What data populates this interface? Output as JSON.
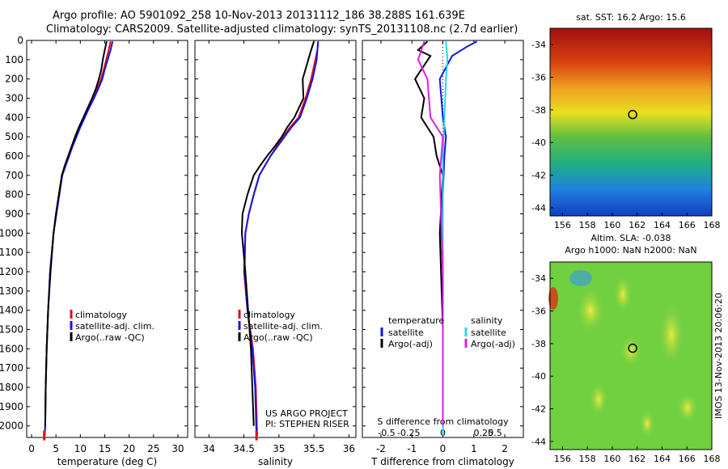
{
  "header": {
    "line1": "Argo profile: AO 5901092_258 10-Nov-2013 20131112_186 38.288S 161.639E",
    "line2": "Climatology: CARS2009. Satellite-adjusted climatology: synTS_20131108.nc (2.7d earlier)"
  },
  "colors": {
    "climatology": "#e01010",
    "satellite": "#1414e6",
    "argo": "#000000",
    "sat_salinity": "#22d8e8",
    "argo_salinity": "#e01ee0"
  },
  "chart_data": [
    {
      "type": "line",
      "xlabel": "temperature (deg C)",
      "ylabel": "",
      "xlim": [
        -1,
        32
      ],
      "ylim": [
        2060,
        0
      ],
      "x_ticks": [
        0,
        5,
        10,
        15,
        20,
        25,
        30
      ],
      "y_ticks": [
        0,
        100,
        200,
        300,
        400,
        500,
        600,
        700,
        800,
        900,
        1000,
        1100,
        1200,
        1300,
        1400,
        1500,
        1600,
        1700,
        1800,
        1900,
        2000
      ],
      "legend": [
        "climatology",
        "satellite-adj. clim.",
        "Argo(..raw -QC)"
      ],
      "series": [
        {
          "name": "climatology",
          "x": [
            16.2,
            15.8,
            15.3,
            14.8,
            14.2,
            13.5,
            12.6,
            11.7,
            10.8,
            9.9,
            9.1,
            8.3,
            7.6,
            6.9,
            6.3,
            5.6,
            5.0,
            4.5,
            3.8,
            3.4,
            3.1,
            2.9,
            2.8,
            2.7
          ],
          "y": [
            5,
            50,
            100,
            150,
            200,
            250,
            300,
            350,
            400,
            450,
            500,
            550,
            600,
            650,
            700,
            800,
            900,
            1000,
            1200,
            1400,
            1600,
            1800,
            2000,
            2050
          ]
        },
        {
          "name": "satellite-adj. clim.",
          "x": [
            16.6,
            16.2,
            15.6,
            15.0,
            14.5,
            13.7,
            12.8,
            11.8,
            10.9,
            10.0,
            9.2,
            8.4,
            7.7,
            7.0,
            6.3,
            5.7,
            5.1,
            4.5,
            3.8,
            3.4,
            3.1,
            2.9,
            2.8,
            2.7
          ],
          "y": [
            5,
            50,
            100,
            150,
            200,
            250,
            300,
            350,
            400,
            450,
            500,
            550,
            600,
            650,
            700,
            800,
            900,
            1000,
            1200,
            1400,
            1600,
            1800,
            2000,
            2050
          ]
        },
        {
          "name": "Argo(..raw -QC)",
          "x": [
            15.4,
            15.0,
            14.6,
            14.3,
            13.8,
            13.2,
            12.4,
            11.5,
            10.6,
            9.7,
            8.9,
            8.2,
            7.5,
            6.8,
            6.2,
            5.6,
            5.0,
            4.5,
            3.9,
            3.4,
            3.1,
            2.9,
            2.8
          ],
          "y": [
            5,
            50,
            100,
            150,
            200,
            250,
            300,
            350,
            400,
            450,
            500,
            550,
            600,
            650,
            700,
            800,
            900,
            1000,
            1200,
            1400,
            1600,
            1800,
            2000
          ]
        }
      ],
      "endpoint": {
        "x": 2.6,
        "y": 2050
      }
    },
    {
      "type": "line",
      "xlabel": "salinity",
      "ylabel": "",
      "xlim": [
        33.8,
        36.1
      ],
      "ylim": [
        2060,
        0
      ],
      "x_ticks": [
        34,
        34.5,
        35,
        35.5,
        36
      ],
      "legend": [
        "climatology",
        "satellite-adj. clim.",
        "Argo(..raw -QC)"
      ],
      "annotation": [
        "US ARGO PROJECT",
        "PI: STEPHEN RISER"
      ],
      "series": [
        {
          "name": "climatology",
          "x": [
            35.56,
            35.55,
            35.52,
            35.46,
            35.38,
            35.28,
            35.16,
            35.06,
            34.97,
            34.88,
            34.8,
            34.72,
            34.64,
            34.57,
            34.52,
            34.5,
            34.55,
            34.63,
            34.67,
            34.69
          ],
          "y": [
            5,
            50,
            100,
            200,
            300,
            400,
            450,
            500,
            550,
            600,
            650,
            700,
            800,
            900,
            1000,
            1200,
            1400,
            1600,
            1800,
            2050
          ]
        },
        {
          "name": "satellite-adj. clim.",
          "x": [
            35.56,
            35.55,
            35.54,
            35.48,
            35.4,
            35.3,
            35.18,
            35.08,
            34.98,
            34.88,
            34.8,
            34.72,
            34.64,
            34.57,
            34.52,
            34.51,
            34.55,
            34.62,
            34.66,
            34.68
          ],
          "y": [
            5,
            50,
            100,
            200,
            300,
            400,
            450,
            500,
            550,
            600,
            650,
            700,
            800,
            900,
            1000,
            1200,
            1400,
            1600,
            1800,
            2050
          ]
        },
        {
          "name": "Argo(..raw -QC)",
          "x": [
            35.5,
            35.46,
            35.42,
            35.34,
            35.35,
            35.22,
            35.12,
            35.04,
            34.94,
            34.83,
            34.73,
            34.64,
            34.55,
            34.48,
            34.47,
            34.52,
            34.6,
            34.64
          ],
          "y": [
            5,
            50,
            100,
            200,
            300,
            400,
            450,
            500,
            550,
            600,
            650,
            700,
            800,
            900,
            1000,
            1200,
            1600,
            2000
          ]
        }
      ],
      "endpoint": {
        "x": 34.68,
        "y": 2050
      }
    },
    {
      "type": "line",
      "xlabel": "T difference from climatology",
      "top_label": "S difference from climatology",
      "xlim": [
        -2.6,
        2.6
      ],
      "ylim": [
        2060,
        0
      ],
      "x_ticks": [
        -2,
        -1,
        0,
        1,
        2
      ],
      "s_ticks": [
        "-0.5",
        "-0.25",
        "0",
        "0.25",
        "0.5"
      ],
      "legend_temperature": [
        "temperature",
        "satellite",
        "Argo(-adj)"
      ],
      "legend_salinity": [
        "salinity",
        "satellite",
        "Argo(-adj)"
      ],
      "series": [
        {
          "name": "satellite",
          "x": [
            1.1,
            0.8,
            0.3,
            -0.1,
            0.0,
            0.1,
            0.05,
            0.0,
            -0.05,
            0.0,
            0.0,
            0.0,
            0.0
          ],
          "y": [
            5,
            30,
            80,
            200,
            400,
            500,
            600,
            800,
            1000,
            1200,
            1500,
            1800,
            2050
          ]
        },
        {
          "name": "Argo(-adj)",
          "x": [
            -0.5,
            -0.8,
            -0.4,
            -0.9,
            -0.6,
            -0.7,
            -0.3,
            -0.2,
            0.0,
            -0.1,
            0.0,
            0.0
          ],
          "y": [
            5,
            50,
            80,
            200,
            300,
            400,
            500,
            600,
            700,
            1000,
            1500,
            2000
          ]
        },
        {
          "name": "satellite",
          "x": [
            0.1,
            0.15,
            0.1,
            0.05,
            0.0,
            0.0,
            0.0,
            0.0,
            0.0
          ],
          "y": [
            5,
            100,
            200,
            400,
            600,
            800,
            1200,
            1600,
            2050
          ]
        },
        {
          "name": "Argo(-adj)",
          "x": [
            -0.6,
            -0.8,
            -0.5,
            -0.4,
            0.0,
            -0.1,
            0.0,
            0.0
          ],
          "y": [
            5,
            100,
            200,
            400,
            500,
            700,
            1200,
            2000
          ]
        }
      ]
    }
  ],
  "maps": [
    {
      "title": "sat. SST: 16.2 Argo: 15.6",
      "x_ticks": [
        "156",
        "158",
        "160",
        "162",
        "164",
        "166",
        "168"
      ],
      "y_ticks": [
        "-34",
        "-36",
        "-38",
        "-40",
        "-42",
        "-44"
      ]
    },
    {
      "title": "Altim. SLA: -0.038",
      "subtitle": "Argo h1000: NaN h2000: NaN",
      "x_ticks": [
        "156",
        "158",
        "160",
        "162",
        "164",
        "166",
        "168"
      ],
      "y_ticks": [
        "-34",
        "-36",
        "-38",
        "-40",
        "-42",
        "-44"
      ],
      "side_text": "IMOS 13-Nov-2013 20:06:20"
    }
  ]
}
